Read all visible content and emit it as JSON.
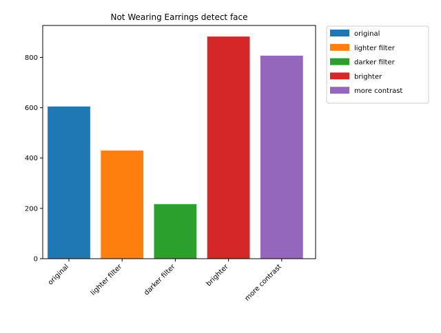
{
  "chart_data": {
    "type": "bar",
    "title": "Not Wearing Earrings detect face",
    "xlabel": "",
    "ylabel": "",
    "categories": [
      "original",
      "lighter filter",
      "darker filter",
      "brighter",
      "more contrast"
    ],
    "values": [
      605,
      430,
      217,
      883,
      807
    ],
    "colors": [
      "#1f77b4",
      "#ff7f0e",
      "#2ca02c",
      "#d62728",
      "#9467bd"
    ],
    "ylim": [
      0,
      927
    ],
    "yticks": [
      0,
      200,
      400,
      600,
      800
    ],
    "grid": false,
    "legend": {
      "placement": "outside-top-right",
      "entries": [
        "original",
        "lighter filter",
        "darker filter",
        "brighter",
        "more contrast"
      ]
    }
  }
}
